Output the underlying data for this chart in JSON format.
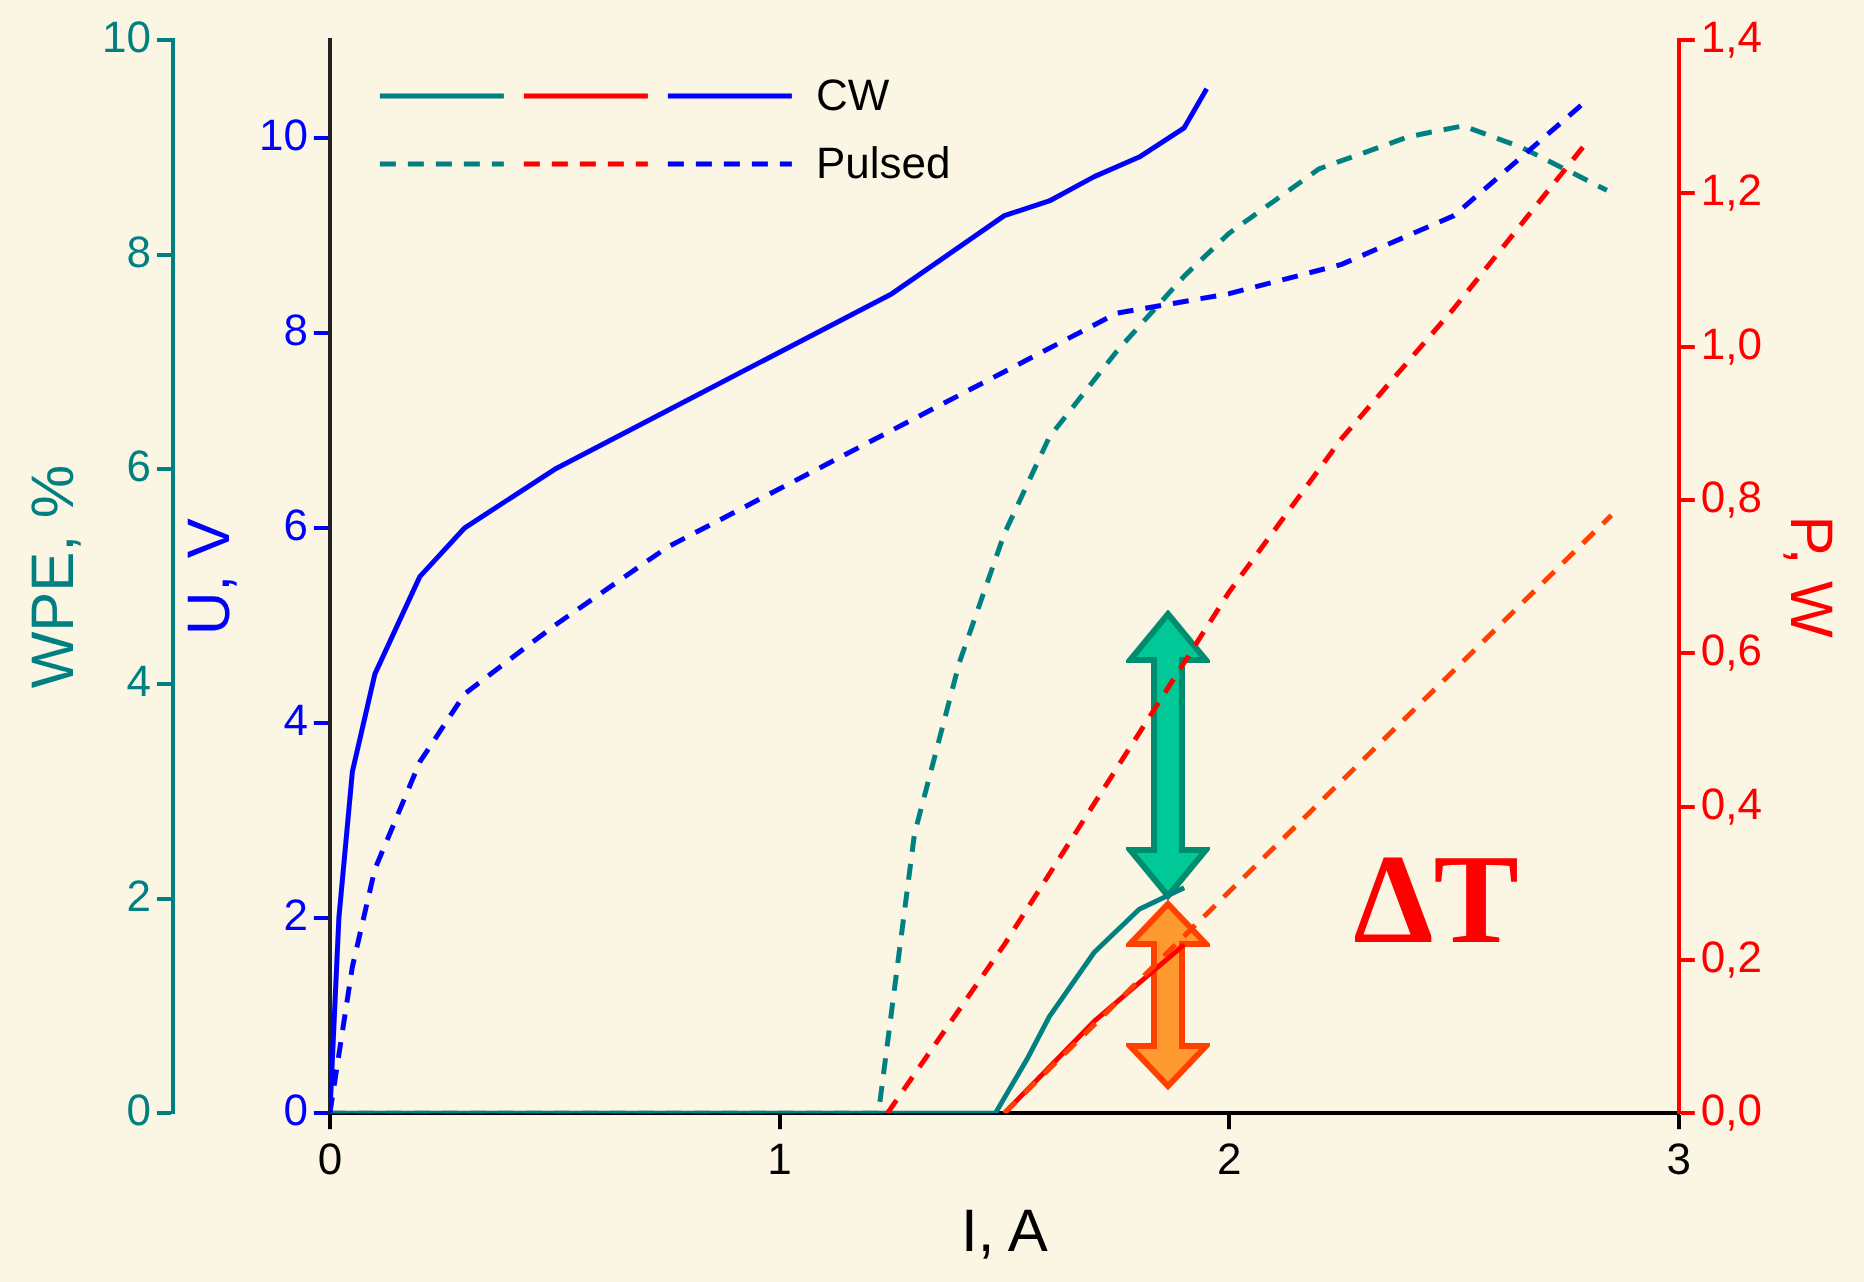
{
  "chart_data": {
    "type": "line",
    "xlabel": "I, A",
    "ylabel": "U, V",
    "y2label": "P, W",
    "y3label": "WPE, %",
    "xlim": [
      0,
      3
    ],
    "xticks": [
      0,
      1,
      2,
      3
    ],
    "ylim": [
      0,
      11
    ],
    "yticks": [
      0,
      2,
      4,
      6,
      8,
      10
    ],
    "y2lim": [
      0,
      1.4
    ],
    "y2ticks": [
      {
        "value": 0,
        "label": "0,0"
      },
      {
        "value": 0.2,
        "label": "0,2"
      },
      {
        "value": 0.4,
        "label": "0,4"
      },
      {
        "value": 0.6,
        "label": "0,6"
      },
      {
        "value": 0.8,
        "label": "0,8"
      },
      {
        "value": 1.0,
        "label": "1,0"
      },
      {
        "value": 1.2,
        "label": "1,2"
      },
      {
        "value": 1.4,
        "label": "1,4"
      }
    ],
    "y3lim": [
      0,
      10
    ],
    "y3ticks": [
      0,
      2,
      4,
      6,
      8,
      10
    ],
    "grid": false,
    "legend": "top left",
    "marker": "none",
    "annotations": [
      "ΔT"
    ],
    "series": [
      {
        "color": "#008080",
        "axis": "y3",
        "line_style": "solid",
        "x": [
          0,
          1.48,
          1.55,
          1.6,
          1.7,
          1.8,
          1.9
        ],
        "values": [
          0,
          0,
          0.5,
          0.9,
          1.5,
          1.9,
          2.1
        ]
      },
      {
        "color": "#ff0000",
        "axis": "y2",
        "line_style": "solid",
        "x": [
          1.5,
          1.6,
          1.7,
          1.8,
          1.9
        ],
        "values": [
          0,
          0.06,
          0.12,
          0.17,
          0.22
        ]
      },
      {
        "name": "CW",
        "color": "#0000ff",
        "line_style": "solid",
        "x": [
          0,
          0.02,
          0.05,
          0.1,
          0.2,
          0.3,
          0.5,
          0.75,
          1.0,
          1.25,
          1.5,
          1.6,
          1.7,
          1.8,
          1.9,
          1.95
        ],
        "values": [
          0,
          2,
          3.5,
          4.5,
          5.5,
          6.0,
          6.6,
          7.2,
          7.8,
          8.4,
          9.2,
          9.35,
          9.6,
          9.8,
          10.1,
          10.5
        ]
      },
      {
        "color": "#008080",
        "axis": "y3",
        "line_style": "dashed",
        "x": [
          0,
          1.22,
          1.3,
          1.4,
          1.5,
          1.6,
          1.75,
          1.9,
          2.0,
          2.2,
          2.4,
          2.52,
          2.65,
          2.84
        ],
        "values": [
          0,
          0,
          2.6,
          4.2,
          5.4,
          6.3,
          7.1,
          7.8,
          8.2,
          8.8,
          9.1,
          9.2,
          9.0,
          8.6
        ]
      },
      {
        "color": "#ff0000",
        "axis": "y2",
        "line_style": "dashed",
        "x": [
          1.24,
          1.5,
          1.75,
          2.0,
          2.25,
          2.5,
          2.8
        ],
        "values": [
          0,
          0.22,
          0.45,
          0.68,
          0.88,
          1.05,
          1.27
        ]
      },
      {
        "name": "Pulsed",
        "color": "#0000ff",
        "line_style": "dashed",
        "x": [
          0,
          0.05,
          0.1,
          0.2,
          0.3,
          0.5,
          0.75,
          1.0,
          1.25,
          1.5,
          1.75,
          2.0,
          2.25,
          2.5,
          2.8
        ],
        "values": [
          0,
          1.5,
          2.5,
          3.6,
          4.3,
          5.0,
          5.8,
          6.4,
          7.0,
          7.6,
          8.2,
          8.4,
          8.7,
          9.2,
          10.4
        ]
      },
      {
        "color": "#ff4000",
        "axis": "y2",
        "line_style": "dashed",
        "x": [
          1.5,
          2.85
        ],
        "values": [
          0,
          0.78
        ]
      }
    ]
  }
}
